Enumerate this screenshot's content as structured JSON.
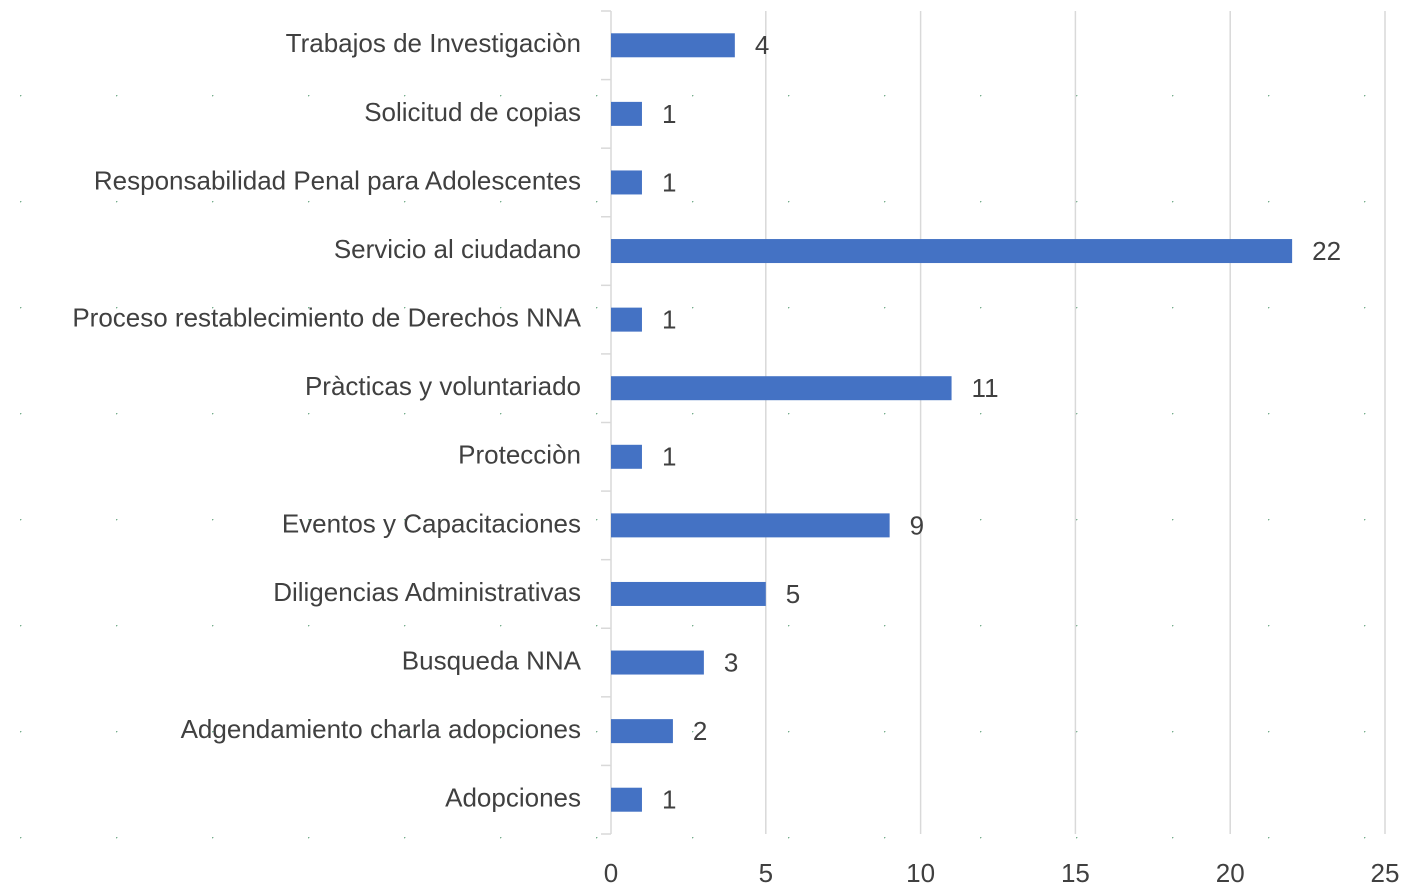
{
  "chart_data": {
    "type": "hbar",
    "categories": [
      "Trabajos de Investigaciòn",
      "Solicitud de copias",
      "Responsabilidad Penal para Adolescentes",
      "Servicio al ciudadano",
      "Proceso restablecimiento de Derechos NNA",
      "Pràcticas y voluntariado",
      "Protecciòn",
      "Eventos y Capacitaciones",
      "Diligencias Administrativas",
      "Busqueda NNA",
      "Adgendamiento charla adopciones",
      "Adopciones"
    ],
    "values": [
      4,
      1,
      1,
      22,
      1,
      11,
      1,
      9,
      5,
      3,
      2,
      1
    ],
    "color": "#4472c4",
    "xlim": [
      0,
      25
    ],
    "xticks": [
      0,
      5,
      10,
      15,
      20,
      25
    ],
    "grid": true
  }
}
